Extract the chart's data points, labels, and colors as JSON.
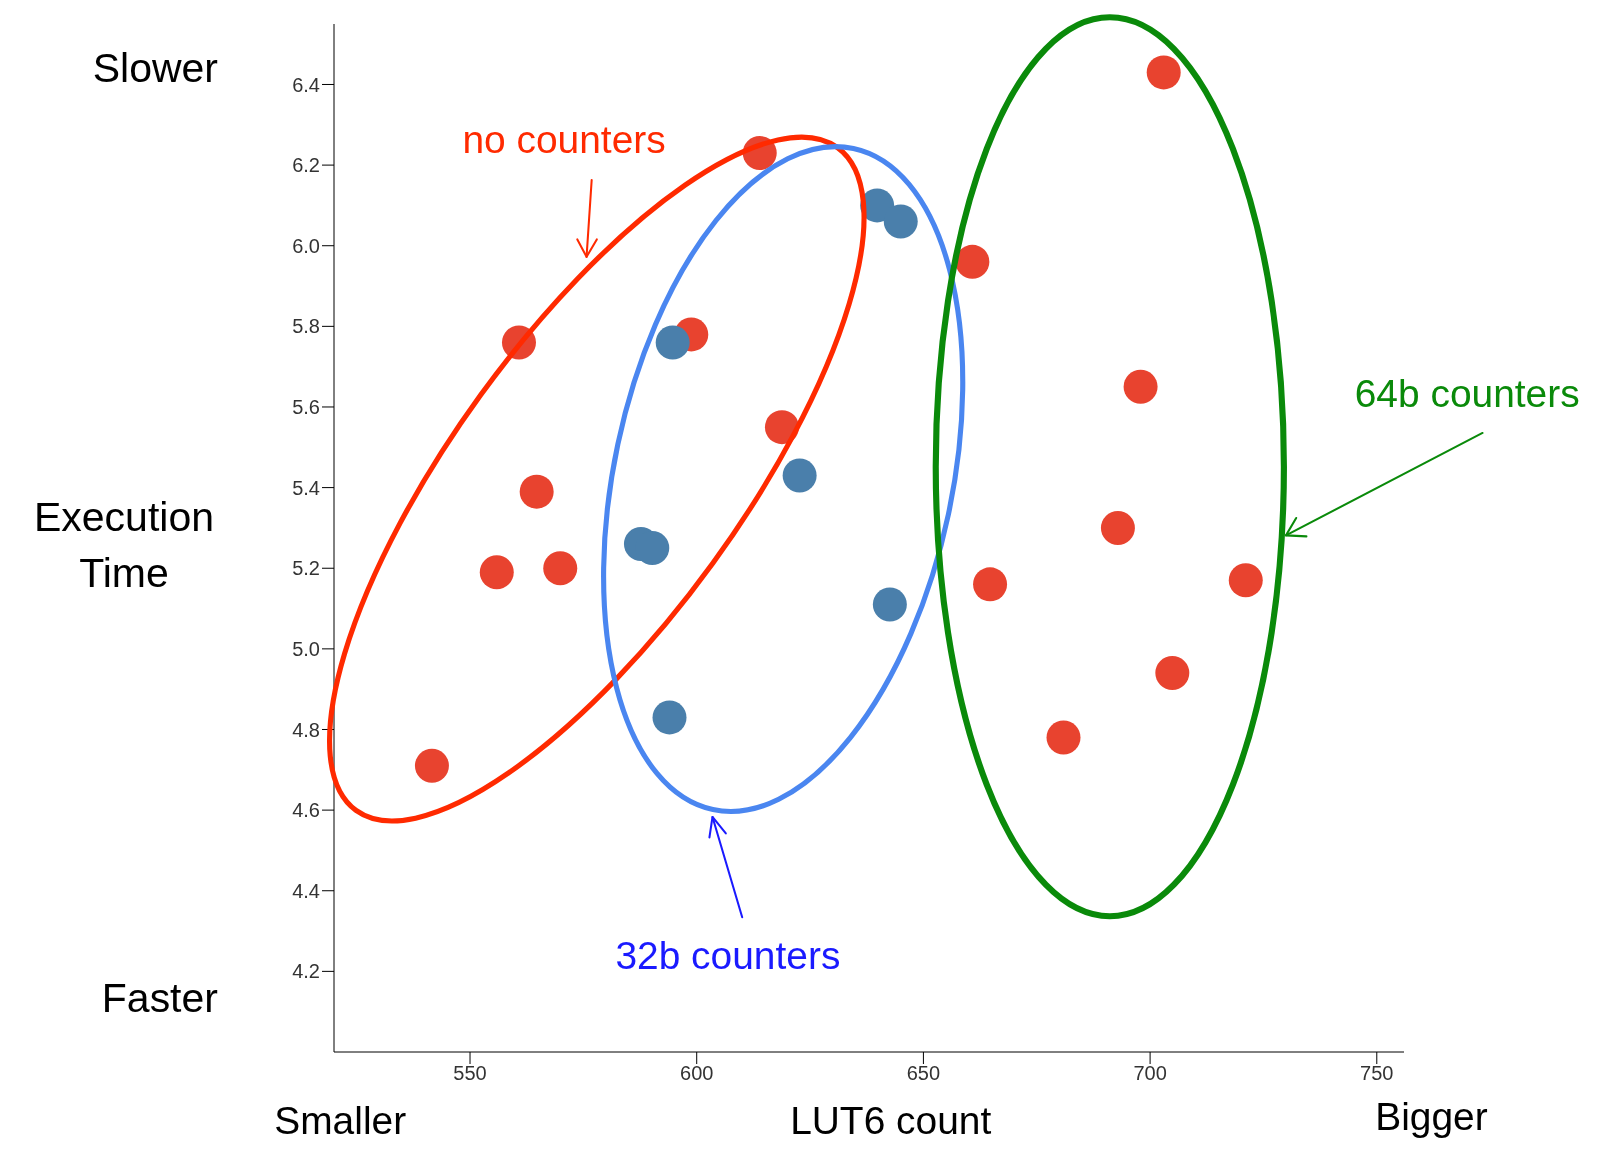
{
  "chart_data": {
    "type": "scatter",
    "xlabel": "LUT6 count",
    "ylabel": "Execution Time",
    "xlim": [
      520,
      756
    ],
    "xticks": [
      550,
      600,
      650,
      700,
      750
    ],
    "ylim": [
      4.0,
      6.55
    ],
    "yticks": [
      {
        "value": 4.2,
        "label": "4.2"
      },
      {
        "value": 4.4,
        "label": "4.4"
      },
      {
        "value": 4.6,
        "label": "4.6"
      },
      {
        "value": 4.8,
        "label": "4.8"
      },
      {
        "value": 5.0,
        "label": "5.0"
      },
      {
        "value": 5.2,
        "label": "5.2"
      },
      {
        "value": 5.4,
        "label": "5.4"
      },
      {
        "value": 5.6,
        "label": "5.6"
      },
      {
        "value": 5.8,
        "label": "5.8"
      },
      {
        "value": 6.0,
        "label": "6.0"
      },
      {
        "value": 6.2,
        "label": "6.2"
      },
      {
        "value": 6.4,
        "label": "6.4"
      }
    ],
    "marker": "circle",
    "series": [
      {
        "color": "#e8432f",
        "x": [
          541.6,
          555.9,
          569.9,
          564.7,
          560.8,
          598.8,
          618.8,
          613.9,
          660.8,
          703.0,
          697.9,
          692.9,
          664.7,
          721.1,
          704.9,
          680.9
        ],
        "values": [
          4.71,
          5.19,
          5.2,
          5.39,
          5.76,
          5.78,
          5.55,
          6.23,
          5.96,
          6.43,
          5.65,
          5.3,
          5.16,
          5.17,
          4.94,
          4.78
        ]
      },
      {
        "color": "#4a7fab",
        "x": [
          639.8,
          645.0,
          594.7,
          622.7,
          587.7,
          590.2,
          642.6,
          594.0
        ],
        "values": [
          6.1,
          6.06,
          5.76,
          5.43,
          5.26,
          5.25,
          5.11,
          4.83
        ]
      }
    ],
    "annotations": [
      "Slower",
      "Faster",
      "Smaller",
      "Bigger",
      "no counters",
      "32b counters",
      "64b counters"
    ]
  }
}
